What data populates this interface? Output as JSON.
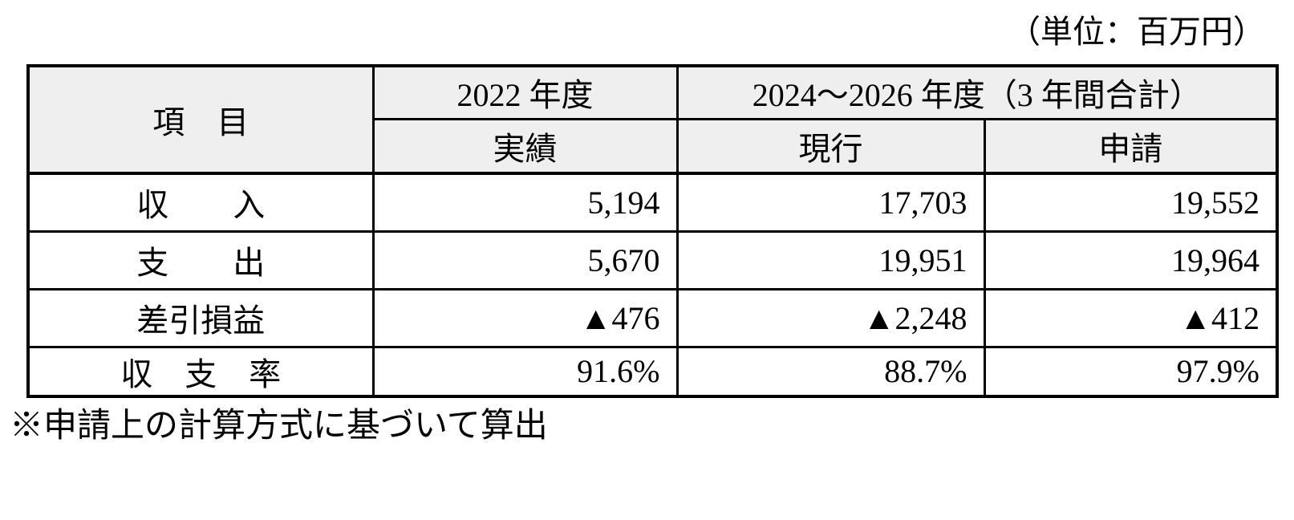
{
  "unit_label": "（単位：百万円）",
  "table": {
    "header": {
      "item": "項　目",
      "fy2022": "2022 年度",
      "fy2024_2026": "2024～2026 年度（3 年間合計）",
      "actual": "実績",
      "current": "現行",
      "application": "申請"
    },
    "rows": [
      {
        "label": "収　　入",
        "actual": "5,194",
        "current": "17,703",
        "application": "19,552"
      },
      {
        "label": "支　　出",
        "actual": "5,670",
        "current": "19,951",
        "application": "19,964"
      },
      {
        "label": "差引損益",
        "actual": "▲476",
        "current": "▲2,248",
        "application": "▲412"
      },
      {
        "label": "収　支　率",
        "actual": "91.6%",
        "current": "88.7%",
        "application": "97.9%"
      }
    ]
  },
  "footnote": "※申請上の計算方式に基づいて算出",
  "colors": {
    "header_bg": "#efefef",
    "border": "#000000",
    "text": "#000000",
    "background": "#ffffff"
  }
}
